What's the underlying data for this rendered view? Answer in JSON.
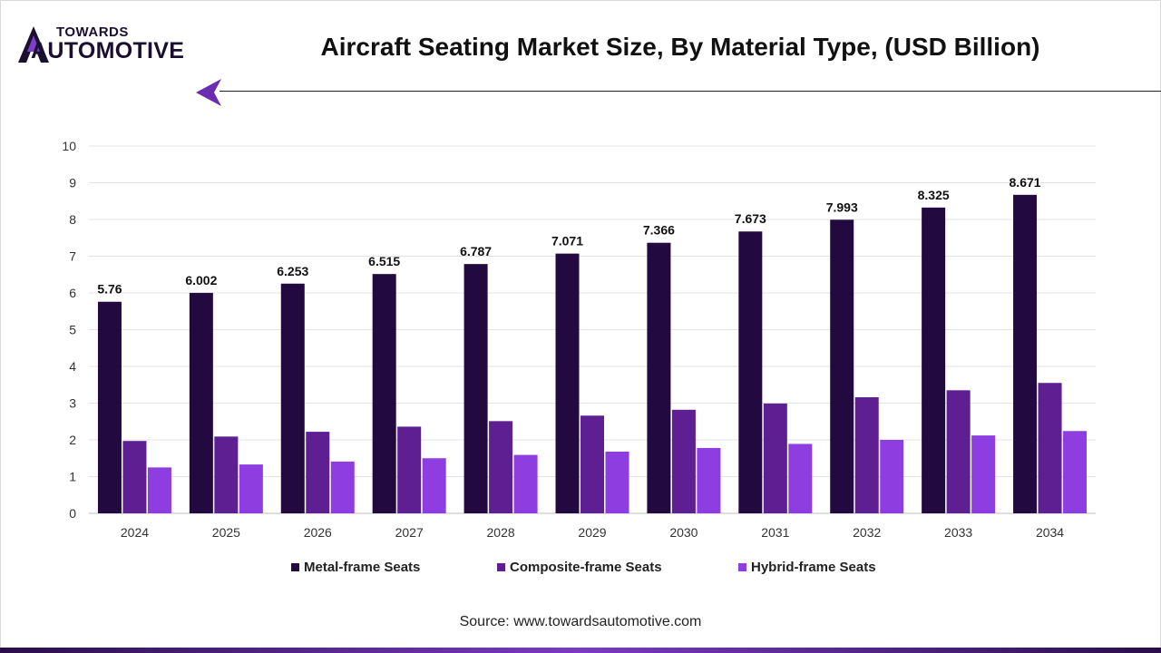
{
  "brand": {
    "line1": "TOWARDS",
    "line2": "AUTOMOTIVE",
    "icon": "back-arrow-icon"
  },
  "header": {
    "title": "Aircraft Seating Market Size, By Material Type, (USD Billion)"
  },
  "chart_data": {
    "type": "bar",
    "title": "Aircraft Seating Market Size, By Material Type, (USD Billion)",
    "xlabel": "",
    "ylabel": "",
    "ylim": [
      0,
      10
    ],
    "yticks": [
      0,
      1,
      2,
      3,
      4,
      5,
      6,
      7,
      8,
      9,
      10
    ],
    "grid": true,
    "legend": "bottom",
    "categories": [
      "2024",
      "2025",
      "2026",
      "2027",
      "2028",
      "2029",
      "2030",
      "2031",
      "2032",
      "2033",
      "2034"
    ],
    "series": [
      {
        "name": "Metal-frame Seats",
        "color": "#22093f",
        "show_labels": true,
        "values": [
          5.76,
          6.002,
          6.253,
          6.515,
          6.787,
          7.071,
          7.366,
          7.673,
          7.993,
          8.325,
          8.671
        ]
      },
      {
        "name": "Composite-frame Seats",
        "color": "#5d1f91",
        "show_labels": false,
        "values": [
          1.97,
          2.09,
          2.22,
          2.36,
          2.51,
          2.66,
          2.82,
          2.99,
          3.16,
          3.35,
          3.55
        ]
      },
      {
        "name": "Hybrid-frame Seats",
        "color": "#8e3ee0",
        "show_labels": false,
        "values": [
          1.25,
          1.33,
          1.41,
          1.5,
          1.59,
          1.68,
          1.78,
          1.89,
          2.0,
          2.12,
          2.24
        ]
      }
    ]
  },
  "footer": {
    "source": "Source: www.towardsautomotive.com"
  }
}
